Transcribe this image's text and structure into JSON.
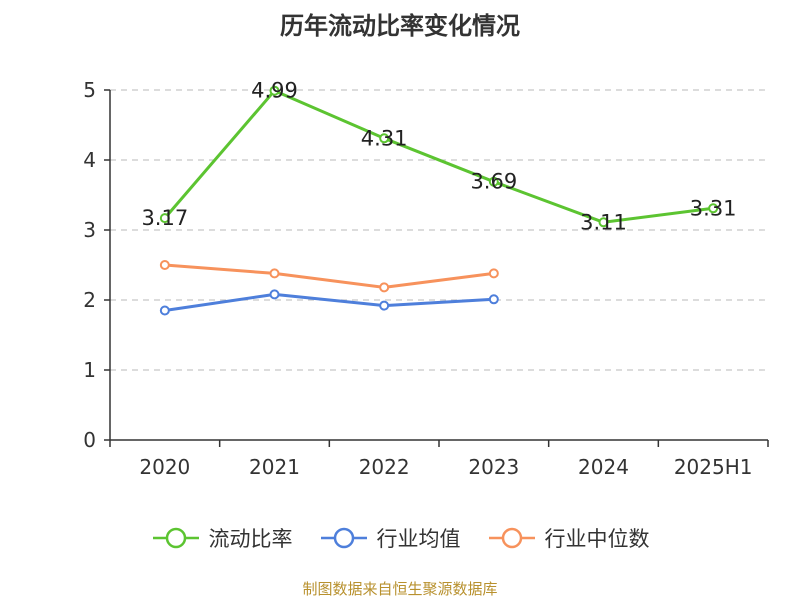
{
  "chart_data": {
    "type": "line",
    "title": "历年流动比率变化情况",
    "categories": [
      "2020",
      "2021",
      "2022",
      "2023",
      "2024",
      "2025H1"
    ],
    "ylim": [
      0,
      5
    ],
    "yticks": [
      "0",
      "1",
      "2",
      "3",
      "4",
      "5"
    ],
    "grid": "dashed-horizontal",
    "legend_position": "bottom-center",
    "series": [
      {
        "name": "流动比率",
        "color": "#5cc431",
        "values": [
          3.17,
          4.99,
          4.31,
          3.69,
          3.11,
          3.31
        ],
        "labels": [
          "3.17",
          "4.99",
          "4.31",
          "3.69",
          "3.11",
          "3.31"
        ]
      },
      {
        "name": "行业均值",
        "color": "#4e7fdb",
        "values": [
          1.85,
          2.08,
          1.92,
          2.01,
          null,
          null
        ]
      },
      {
        "name": "行业中位数",
        "color": "#f7925c",
        "values": [
          2.5,
          2.38,
          2.18,
          2.38,
          null,
          null
        ]
      }
    ]
  },
  "source_note": "制图数据来自恒生聚源数据库"
}
